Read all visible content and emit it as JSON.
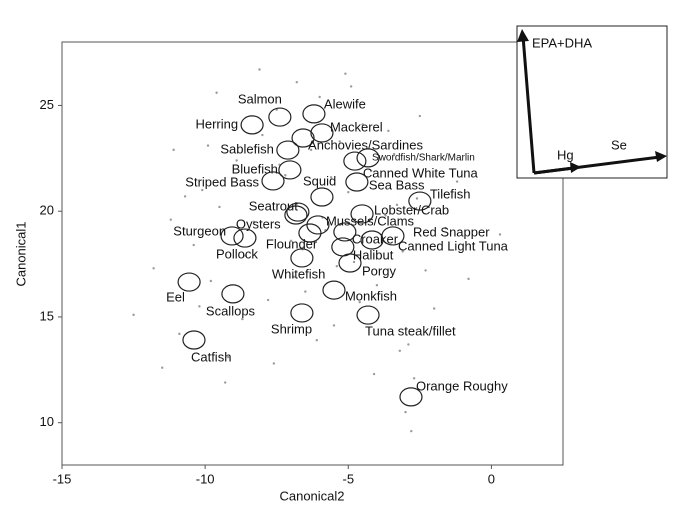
{
  "chart_data": {
    "type": "scatter",
    "x_label": "Canonical2",
    "y_label": "Canonical1",
    "xlim": [
      -15,
      2.5
    ],
    "ylim": [
      8,
      28
    ],
    "xticks": [
      -15,
      -10,
      -5,
      0
    ],
    "yticks": [
      10,
      15,
      20,
      25
    ],
    "grid": false,
    "points": {
      "color": "#9a9a9a",
      "x": [
        -12.5,
        -11.8,
        -11.2,
        -10.9,
        -10.4,
        -10.1,
        -9.8,
        -9.5,
        -9.2,
        -8.9,
        -8.6,
        -8.3,
        -8.0,
        -7.8,
        -7.5,
        -7.2,
        -7.0,
        -6.8,
        -6.5,
        -6.3,
        -6.0,
        -5.8,
        -5.5,
        -5.3,
        -5.0,
        -4.8,
        -4.5,
        -4.2,
        -4.0,
        -3.7,
        -3.4,
        -3.1,
        -2.9,
        -2.6,
        -2.3,
        -2.0,
        -1.6,
        -1.2,
        -0.8,
        0.3,
        -11.5,
        -10.7,
        -9.9,
        -9.3,
        -8.7,
        -8.1,
        -7.6,
        -7.1,
        -6.6,
        -6.1,
        -5.6,
        -5.1,
        -4.6,
        -4.1,
        -3.6,
        -3.0,
        -2.8,
        -2.7,
        -3.2,
        -9.6,
        -7.4,
        -6.9,
        -5.9,
        -5.4,
        -4.9,
        -8.4,
        -10.2,
        -11.1,
        -3.3,
        -2.5
      ],
      "y": [
        15.1,
        17.3,
        19.6,
        14.2,
        18.4,
        21.0,
        16.7,
        20.2,
        13.1,
        22.4,
        17.9,
        19.5,
        23.6,
        15.8,
        24.8,
        21.7,
        18.6,
        26.1,
        16.2,
        22.9,
        25.4,
        19.1,
        14.6,
        23.3,
        20.9,
        17.6,
        24.1,
        21.9,
        16.5,
        19.8,
        22.7,
        18.1,
        13.7,
        20.6,
        17.2,
        15.4,
        19.2,
        21.4,
        16.8,
        18.9,
        12.6,
        20.7,
        23.1,
        11.9,
        14.9,
        26.7,
        12.8,
        20.1,
        18.2,
        13.9,
        21.6,
        26.5,
        15.7,
        12.3,
        23.8,
        10.5,
        9.6,
        12.1,
        13.4,
        25.6,
        22.2,
        16.9,
        19.7,
        17.4,
        25.9,
        21.2,
        15.5,
        22.9,
        20.3,
        24.5
      ]
    },
    "groups": {
      "color": "#222222",
      "labels": [
        "Salmon",
        "Alewife",
        "Herring",
        "Mackerel",
        "Anchovies/Sardines",
        "Sablefish",
        "Swordfish/Shark/Marlin",
        "Canned White Tuna",
        "Sea Bass",
        "Bluefish",
        "Striped Bass",
        "Squid",
        "Tilefish",
        "Seatrout",
        "Lobster/Crab",
        "Mussels/Clams",
        "Sturgeon",
        "Oysters",
        "Pollock",
        "Flounder",
        "Croaker",
        "Red Snapper",
        "Canned Light Tuna",
        "Halibut",
        "Whitefish",
        "Porgy",
        "Eel",
        "Scallops",
        "Monkfish",
        "Shrimp",
        "Tuna steak/fillet",
        "Catfish",
        "Orange Roughy"
      ],
      "x": [
        -7.39,
        -6.2,
        -8.36,
        -5.92,
        -6.58,
        -7.11,
        -4.31,
        -4.77,
        -4.7,
        -7.04,
        -7.63,
        -5.92,
        -2.5,
        -6.83,
        -4.52,
        -6.06,
        -9.06,
        -6.76,
        -8.61,
        -6.34,
        -5.12,
        -3.44,
        -4.17,
        -5.19,
        -6.62,
        -4.94,
        -10.56,
        -9.03,
        -5.5,
        -6.62,
        -4.31,
        -10.39,
        -2.81
      ],
      "y": [
        24.45,
        24.6,
        24.08,
        23.7,
        23.46,
        22.89,
        22.52,
        22.37,
        21.38,
        21.95,
        21.43,
        20.67,
        20.48,
        19.82,
        19.87,
        19.35,
        18.83,
        19.96,
        18.73,
        18.97,
        19.02,
        18.83,
        18.64,
        18.31,
        17.79,
        17.55,
        16.65,
        16.09,
        16.27,
        15.19,
        15.09,
        13.91,
        11.22
      ]
    }
  },
  "inset": {
    "labels": [
      "EPA+DHA",
      "Hg",
      "Se"
    ]
  }
}
